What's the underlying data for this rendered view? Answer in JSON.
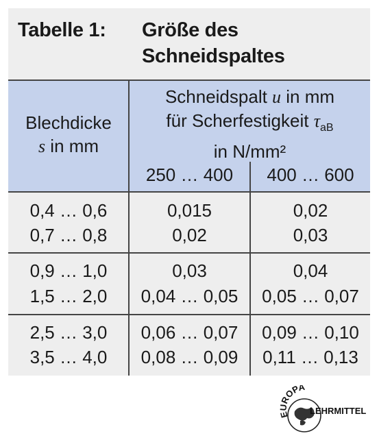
{
  "title": {
    "number": "Tabelle 1:",
    "line1": "Größe des",
    "line2": "Schneidspaltes"
  },
  "header": {
    "col1_line1": "Blechdicke",
    "col1_symbol": "s",
    "col1_unit": " in mm",
    "col2_line1_prefix": "Schneidspalt ",
    "col2_symbol": "u",
    "col2_line1_suffix": " in mm",
    "col2_line2_prefix": "für Scherfestigkeit ",
    "col2_tau": "τ",
    "col2_tau_sub": "aB",
    "col2_line3": "in N/mm²",
    "sub1": "250 … 400",
    "sub2": "400 … 600"
  },
  "rows": [
    {
      "s": "0,4 … 0,6",
      "a": "0,015",
      "b": "0,02"
    },
    {
      "s": "0,7 … 0,8",
      "a": "0,02",
      "b": "0,03"
    },
    {
      "s": "0,9 … 1,0",
      "a": "0,03",
      "b": "0,04"
    },
    {
      "s": "1,5 … 2,0",
      "a": "0,04 … 0,05",
      "b": "0,05 … 0,07"
    },
    {
      "s": "2,5 … 3,0",
      "a": "0,06 … 0,07",
      "b": "0,09 … 0,10"
    },
    {
      "s": "3,5 … 4,0",
      "a": "0,08 … 0,09",
      "b": "0,11 … 0,13"
    }
  ],
  "logo": {
    "top": "EUROPA",
    "bottom": "LEHRMITTEL"
  }
}
